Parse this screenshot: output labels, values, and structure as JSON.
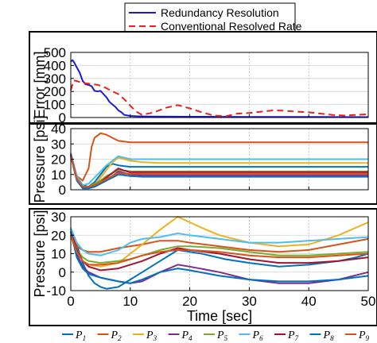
{
  "chart_data": [
    {
      "type": "line",
      "ylabel": "Error [mm]",
      "xlim": [
        0,
        50
      ],
      "ylim": [
        0,
        500
      ],
      "xticks": [
        0,
        10,
        20,
        30,
        40,
        50
      ],
      "yticks": [
        0,
        100,
        200,
        300,
        400,
        500
      ],
      "show_xticklabels": false,
      "grid": true,
      "legend": "above",
      "series": [
        {
          "name": "Redundancy Resolution",
          "color": "#1a1adb",
          "dash": "solid",
          "x": [
            0,
            0.3,
            0.6,
            1.0,
            1.5,
            2.0,
            2.5,
            3.0,
            3.5,
            4.0,
            4.5,
            5.0,
            5.5,
            6.0,
            6.5,
            7.0,
            7.5,
            8.0,
            8.5,
            9.0,
            10,
            11,
            13,
            20,
            30,
            40,
            50
          ],
          "y": [
            430,
            440,
            420,
            385,
            345,
            280,
            255,
            250,
            240,
            205,
            200,
            205,
            180,
            155,
            120,
            100,
            82,
            55,
            40,
            20,
            12,
            10,
            8,
            6,
            5,
            4,
            3
          ]
        },
        {
          "name": "Conventional Resolved Rate",
          "color": "#e8231f",
          "dash": "dashed",
          "x": [
            0,
            0.5,
            1.0,
            2,
            3,
            4,
            5,
            6,
            7,
            8,
            9,
            10,
            11,
            12,
            14,
            16,
            18,
            20,
            22,
            24,
            26,
            28,
            30,
            32,
            34,
            36,
            38,
            40,
            42,
            44,
            46,
            48,
            50
          ],
          "y": [
            210,
            285,
            280,
            265,
            260,
            255,
            245,
            225,
            200,
            180,
            140,
            90,
            45,
            20,
            40,
            75,
            95,
            70,
            40,
            15,
            10,
            30,
            35,
            45,
            55,
            52,
            45,
            40,
            30,
            20,
            15,
            20,
            25
          ]
        }
      ]
    },
    {
      "type": "line",
      "ylabel": "Pressure [psi]",
      "xlim": [
        0,
        50
      ],
      "ylim": [
        0,
        40
      ],
      "xticks": [
        0,
        10,
        20,
        30,
        40,
        50
      ],
      "yticks": [
        0,
        10,
        20,
        30,
        40
      ],
      "show_xticklabels": false,
      "grid": true,
      "series": [
        {
          "name": "P1",
          "color": "#0072bd",
          "x": [
            0,
            1,
            2,
            3,
            4,
            5,
            6,
            7,
            8,
            9,
            10,
            12,
            15,
            20,
            30,
            40,
            50
          ],
          "y": [
            24,
            8,
            3,
            2,
            5,
            10,
            15,
            17,
            16,
            15.5,
            15,
            15,
            15,
            15,
            15,
            15,
            15
          ]
        },
        {
          "name": "P2",
          "color": "#d95319",
          "x": [
            0,
            1,
            2,
            3,
            3.5,
            4,
            5,
            6,
            7,
            8,
            10,
            15,
            20,
            30,
            40,
            50
          ],
          "y": [
            24,
            9,
            6,
            14,
            28,
            34,
            37,
            36,
            34,
            32,
            31,
            31,
            31,
            31,
            31,
            31
          ]
        },
        {
          "name": "P3",
          "color": "#edb120",
          "x": [
            0,
            1,
            2,
            3,
            4,
            5,
            6,
            7,
            8,
            9,
            10,
            12,
            15,
            20,
            30,
            40,
            50
          ],
          "y": [
            24,
            8,
            2,
            1,
            3,
            8,
            13,
            18,
            21,
            20,
            19,
            18,
            17.5,
            17.5,
            17.5,
            17.5,
            17.5
          ]
        },
        {
          "name": "P4",
          "color": "#7e2f8e",
          "x": [
            0,
            1,
            2,
            3,
            4,
            5,
            6,
            7,
            8,
            9,
            10,
            12,
            15,
            20,
            30,
            40,
            50
          ],
          "y": [
            23,
            7,
            1,
            1,
            2,
            4,
            6,
            9,
            12,
            11,
            10,
            9.5,
            9.5,
            9.5,
            9.5,
            9.5,
            9.5
          ]
        },
        {
          "name": "P5",
          "color": "#77ac30",
          "x": [
            0,
            1,
            2,
            3,
            4,
            5,
            6,
            7,
            8,
            9,
            10,
            12,
            15,
            20,
            30,
            40,
            50
          ],
          "y": [
            23,
            7,
            2,
            2,
            4,
            6,
            9,
            11,
            13,
            12.5,
            12,
            12,
            12,
            12,
            12,
            12,
            12
          ]
        },
        {
          "name": "P6",
          "color": "#4dbeee",
          "x": [
            0,
            1,
            2,
            3,
            4,
            5,
            6,
            7,
            8,
            9,
            10,
            12,
            15,
            20,
            30,
            40,
            50
          ],
          "y": [
            24,
            9,
            3,
            4,
            8,
            12,
            16,
            19,
            22,
            21,
            20,
            20,
            20,
            20,
            20,
            20,
            20
          ]
        },
        {
          "name": "P7",
          "color": "#a2142f",
          "x": [
            0,
            1,
            2,
            3,
            4,
            5,
            6,
            7,
            8,
            9,
            10,
            12,
            15,
            20,
            30,
            40,
            50
          ],
          "y": [
            23,
            7,
            2,
            2,
            3,
            5,
            8,
            11,
            14,
            12.5,
            11.5,
            11.5,
            11.5,
            11.5,
            11.5,
            11.5,
            11.5
          ]
        },
        {
          "name": "P8",
          "color": "#0072bd",
          "x": [
            0,
            1,
            2,
            3,
            4,
            5,
            6,
            7,
            8,
            9,
            10,
            12,
            15,
            20,
            30,
            40,
            50
          ],
          "y": [
            22,
            6,
            1,
            1,
            2,
            4,
            6,
            8,
            10,
            9.5,
            9,
            8.5,
            8.5,
            8.5,
            8.5,
            8.5,
            8.5
          ]
        },
        {
          "name": "P9",
          "color": "#d95319",
          "x": [
            0,
            1,
            2,
            3,
            4,
            5,
            6,
            7,
            8,
            9,
            10,
            12,
            15,
            20,
            30,
            40,
            50
          ],
          "y": [
            22,
            7,
            2,
            2,
            3,
            5,
            7,
            9,
            11,
            10.5,
            10.5,
            10.5,
            10.5,
            10.5,
            10.5,
            10.5,
            10.5
          ]
        }
      ]
    },
    {
      "type": "line",
      "xlabel": "Time [sec]",
      "ylabel": "Pressure [psi]",
      "xlim": [
        0,
        50
      ],
      "ylim": [
        -10,
        30
      ],
      "xticks": [
        0,
        10,
        20,
        30,
        40,
        50
      ],
      "yticks": [
        -10,
        0,
        10,
        20,
        30
      ],
      "show_xticklabels": true,
      "grid": true,
      "legend": "bottom",
      "series": [
        {
          "name": "P1",
          "color": "#0072bd",
          "x": [
            0,
            1,
            2,
            3,
            4,
            5,
            6,
            8,
            10,
            12,
            15,
            18,
            22,
            26,
            30,
            35,
            40,
            45,
            48,
            50
          ],
          "y": [
            23,
            15,
            5,
            -2,
            -6,
            -8,
            -9,
            -8,
            -4,
            0,
            6,
            12,
            10,
            7,
            5,
            3,
            4,
            6,
            8,
            10
          ]
        },
        {
          "name": "P2",
          "color": "#d95319",
          "x": [
            0,
            1,
            2,
            3,
            5,
            8,
            12,
            15,
            18,
            20,
            25,
            30,
            35,
            40,
            45,
            50
          ],
          "y": [
            22,
            14,
            12,
            11,
            11,
            13,
            15,
            17,
            17,
            16,
            14,
            12,
            11,
            12,
            15,
            18
          ]
        },
        {
          "name": "P3",
          "color": "#edb120",
          "x": [
            0,
            1,
            2,
            3,
            5,
            8,
            10,
            12,
            15,
            18,
            20,
            22,
            25,
            30,
            35,
            40,
            45,
            50
          ],
          "y": [
            20,
            12,
            6,
            4,
            3,
            5,
            10,
            15,
            23,
            30,
            27,
            24,
            20,
            16,
            14,
            15,
            20,
            27
          ]
        },
        {
          "name": "P4",
          "color": "#7e2f8e",
          "x": [
            0,
            1,
            2,
            3,
            5,
            8,
            10,
            12,
            15,
            18,
            20,
            25,
            30,
            35,
            40,
            45,
            50
          ],
          "y": [
            20,
            10,
            3,
            0,
            -3,
            -5,
            -6,
            -5,
            0,
            4,
            3,
            0,
            -4,
            -6,
            -6,
            -4,
            0
          ]
        },
        {
          "name": "P5",
          "color": "#77ac30",
          "x": [
            0,
            1,
            2,
            3,
            5,
            8,
            10,
            12,
            15,
            18,
            20,
            25,
            30,
            35,
            40,
            45,
            50
          ],
          "y": [
            21,
            12,
            8,
            6,
            5,
            6,
            7,
            9,
            12,
            14,
            14,
            13,
            11,
            9,
            9,
            10,
            11
          ]
        },
        {
          "name": "P6",
          "color": "#4dbeee",
          "x": [
            0,
            1,
            2,
            3,
            5,
            8,
            10,
            12,
            15,
            18,
            20,
            25,
            30,
            35,
            40,
            45,
            50
          ],
          "y": [
            24,
            16,
            12,
            10,
            9,
            12,
            16,
            18,
            19,
            21,
            20,
            18,
            16,
            16,
            17,
            18,
            19
          ]
        },
        {
          "name": "P7",
          "color": "#a2142f",
          "x": [
            0,
            1,
            2,
            3,
            5,
            8,
            10,
            12,
            15,
            18,
            20,
            25,
            30,
            35,
            40,
            45,
            50
          ],
          "y": [
            22,
            12,
            6,
            3,
            1,
            2,
            4,
            6,
            10,
            13,
            12,
            10,
            7,
            5,
            5,
            6,
            8
          ]
        },
        {
          "name": "P8",
          "color": "#0072bd",
          "x": [
            0,
            1,
            2,
            3,
            5,
            8,
            10,
            12,
            15,
            18,
            20,
            25,
            30,
            35,
            40,
            45,
            50
          ],
          "y": [
            22,
            8,
            2,
            -1,
            -3,
            -5,
            -6,
            -4,
            0,
            2,
            1,
            -2,
            -4,
            -5,
            -5,
            -4,
            -2
          ]
        },
        {
          "name": "P9",
          "color": "#d95319",
          "x": [
            0,
            1,
            2,
            3,
            5,
            8,
            10,
            12,
            15,
            18,
            20,
            25,
            30,
            35,
            40,
            45,
            50
          ],
          "y": [
            20,
            11,
            6,
            4,
            4,
            5,
            7,
            9,
            11,
            12,
            12,
            11,
            9,
            8,
            8,
            9,
            10
          ]
        }
      ]
    }
  ]
}
